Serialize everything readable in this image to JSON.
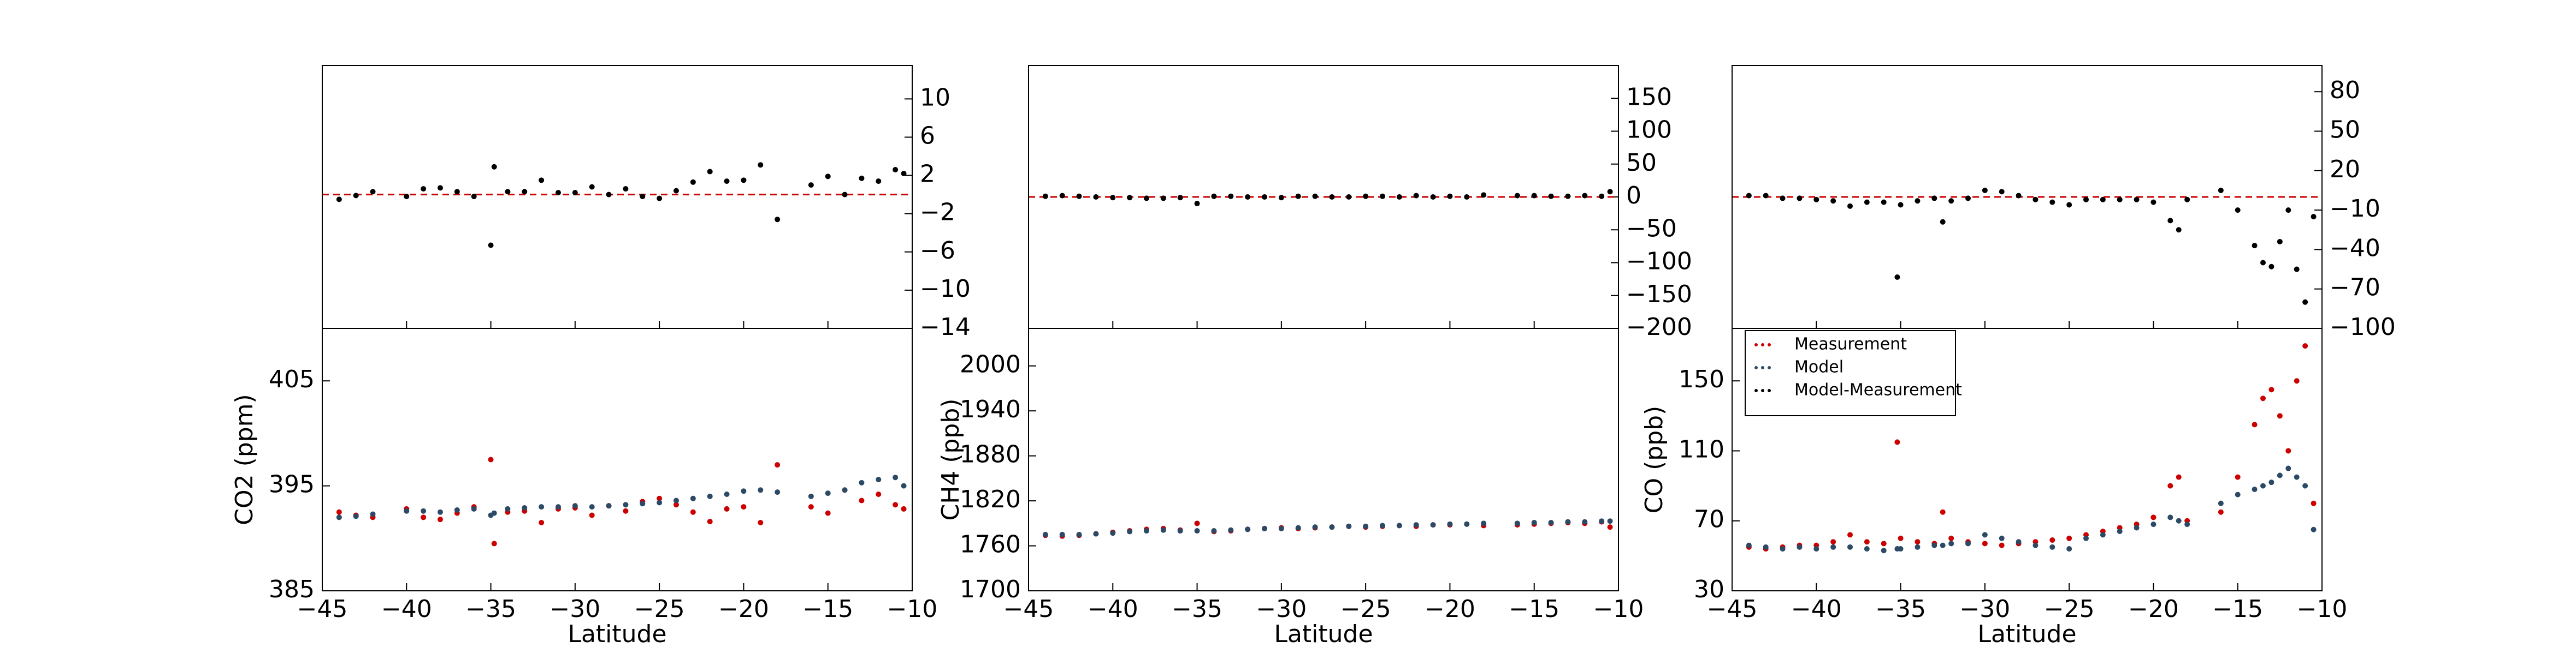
{
  "chart_data": [
    {
      "type": "scatter",
      "xlabel": "Latitude",
      "ylabel": "CO2 (ppm)",
      "x": [
        -44,
        -43,
        -42,
        -40,
        -39,
        -38,
        -37,
        -36,
        -35,
        -34.8,
        -34,
        -33,
        -32,
        -31,
        -30,
        -29,
        -28,
        -27,
        -26,
        -25,
        -24,
        -23,
        -22,
        -21,
        -20,
        -19,
        -18,
        -16,
        -15,
        -14,
        -13,
        -12,
        -11,
        -10.5
      ],
      "series": [
        {
          "name": "Measurement",
          "color": "#cc0000",
          "values": [
            392.5,
            392.2,
            392.0,
            392.8,
            392.0,
            391.8,
            392.4,
            393.0,
            397.5,
            389.5,
            392.5,
            392.6,
            391.5,
            392.8,
            392.9,
            392.2,
            393.1,
            392.6,
            393.5,
            393.8,
            393.2,
            392.5,
            391.6,
            392.8,
            393.0,
            391.5,
            397.0,
            393.0,
            392.4,
            394.6,
            393.6,
            394.2,
            393.2,
            392.8
          ]
        },
        {
          "name": "Model",
          "color": "#2c4a66",
          "values": [
            392.0,
            392.1,
            392.3,
            392.6,
            392.6,
            392.5,
            392.7,
            392.8,
            392.2,
            392.4,
            392.8,
            392.9,
            393.0,
            393.0,
            393.1,
            393.0,
            393.1,
            393.2,
            393.3,
            393.4,
            393.6,
            393.8,
            394.0,
            394.2,
            394.5,
            394.6,
            394.4,
            394.0,
            394.3,
            394.6,
            395.3,
            395.6,
            395.8,
            395.0
          ]
        },
        {
          "name": "Model-Measurement",
          "color": "#000000",
          "axis": "y2",
          "values": [
            -0.5,
            -0.1,
            0.3,
            -0.2,
            0.6,
            0.7,
            0.3,
            -0.2,
            -5.3,
            2.9,
            0.3,
            0.3,
            1.5,
            0.2,
            0.2,
            0.8,
            0,
            0.6,
            -0.2,
            -0.4,
            0.4,
            1.3,
            2.4,
            1.4,
            1.5,
            3.1,
            -2.6,
            1.0,
            1.9,
            0,
            1.7,
            1.4,
            2.6,
            2.2
          ]
        }
      ],
      "xlim": [
        -45,
        -10
      ],
      "xticks": [
        {
          "value": -45,
          "label": "−45"
        },
        {
          "value": -40,
          "label": "−40"
        },
        {
          "value": -35,
          "label": "−35"
        },
        {
          "value": -30,
          "label": "−30"
        },
        {
          "value": -25,
          "label": "−25"
        },
        {
          "value": -20,
          "label": "−20"
        },
        {
          "value": -15,
          "label": "−15"
        },
        {
          "value": -10,
          "label": "−10"
        }
      ],
      "ylim": [
        385,
        410
      ],
      "yticks": [
        385,
        395,
        405
      ],
      "y2lim": [
        -14,
        13.5
      ],
      "y2ticks": [
        10,
        6,
        2,
        {
          "value": -2,
          "label": "−2"
        },
        {
          "value": -6,
          "label": "−6"
        },
        {
          "value": -10,
          "label": "−10"
        },
        {
          "value": -14,
          "label": "−14"
        }
      ],
      "y2_reference_line": 0,
      "reference_color": "#cc0000"
    },
    {
      "type": "scatter",
      "xlabel": "Latitude",
      "ylabel": "CH4 (ppb)",
      "x": [
        -44,
        -43,
        -42,
        -41,
        -40,
        -39,
        -38,
        -37,
        -36,
        -35,
        -34,
        -33,
        -32,
        -31,
        -30,
        -29,
        -28,
        -27,
        -26,
        -25,
        -24,
        -23,
        -22,
        -21,
        -20,
        -19,
        -18,
        -16,
        -15,
        -14,
        -13,
        -12,
        -11,
        -10.5
      ],
      "series": [
        {
          "name": "Measurement",
          "color": "#cc0000",
          "values": [
            1774,
            1773,
            1774,
            1776,
            1778,
            1780,
            1782,
            1783,
            1781,
            1790,
            1779,
            1780,
            1782,
            1783,
            1784,
            1783,
            1784,
            1785,
            1786,
            1785,
            1786,
            1787,
            1786,
            1788,
            1788,
            1789,
            1787,
            1788,
            1789,
            1790,
            1791,
            1790,
            1792,
            1785
          ]
        },
        {
          "name": "Model",
          "color": "#2c4a66",
          "values": [
            1775,
            1775,
            1775,
            1776,
            1777,
            1779,
            1780,
            1781,
            1780,
            1780,
            1780,
            1781,
            1782,
            1783,
            1783,
            1784,
            1785,
            1785,
            1786,
            1786,
            1787,
            1787,
            1788,
            1788,
            1789,
            1789,
            1790,
            1790,
            1791,
            1791,
            1792,
            1792,
            1793,
            1793
          ]
        },
        {
          "name": "Model-Measurement",
          "color": "#000000",
          "axis": "y2",
          "values": [
            1,
            2,
            1,
            0,
            -1,
            -1,
            -2,
            -2,
            -1,
            -10,
            1,
            1,
            0,
            0,
            -1,
            1,
            1,
            0,
            0,
            1,
            1,
            0,
            2,
            0,
            1,
            0,
            3,
            2,
            2,
            1,
            1,
            2,
            1,
            8
          ]
        }
      ],
      "xlim": [
        -45,
        -10
      ],
      "xticks": [
        {
          "value": -45,
          "label": "−45"
        },
        {
          "value": -40,
          "label": "−40"
        },
        {
          "value": -35,
          "label": "−35"
        },
        {
          "value": -30,
          "label": "−30"
        },
        {
          "value": -25,
          "label": "−25"
        },
        {
          "value": -20,
          "label": "−20"
        },
        {
          "value": -15,
          "label": "−15"
        },
        {
          "value": -10,
          "label": "−10"
        }
      ],
      "ylim": [
        1700,
        2050
      ],
      "yticks": [
        1700,
        1760,
        1820,
        1880,
        1940,
        2000
      ],
      "y2lim": [
        -200,
        200
      ],
      "y2ticks": [
        150,
        100,
        50,
        0,
        {
          "value": -50,
          "label": "−50"
        },
        {
          "value": -100,
          "label": "−100"
        },
        {
          "value": -150,
          "label": "−150"
        },
        {
          "value": -200,
          "label": "−200"
        }
      ],
      "y2_reference_line": 0,
      "reference_color": "#cc0000"
    },
    {
      "type": "scatter",
      "xlabel": "Latitude",
      "ylabel": "CO (ppb)",
      "legend": "upper left",
      "x": [
        -44,
        -43,
        -42,
        -41,
        -40,
        -39,
        -38,
        -37,
        -36,
        -35.2,
        -35,
        -34,
        -33,
        -32.5,
        -32,
        -31,
        -30,
        -29,
        -28,
        -27,
        -26,
        -25,
        -24,
        -23,
        -22,
        -21,
        -20,
        -19,
        -18.5,
        -18,
        -16,
        -15,
        -14,
        -13.5,
        -13,
        -12.5,
        -12,
        -11.5,
        -11,
        -10.5
      ],
      "series": [
        {
          "name": "Measurement",
          "color": "#cc0000",
          "values": [
            55,
            54,
            55,
            56,
            56,
            58,
            62,
            58,
            57,
            115,
            60,
            58,
            57,
            75,
            60,
            58,
            57,
            56,
            57,
            58,
            59,
            60,
            62,
            64,
            66,
            68,
            72,
            90,
            95,
            70,
            75,
            95,
            125,
            140,
            145,
            130,
            110,
            150,
            170,
            80
          ]
        },
        {
          "name": "Model",
          "color": "#2c4a66",
          "values": [
            56,
            55,
            54,
            55,
            54,
            55,
            55,
            54,
            53,
            54,
            54,
            55,
            56,
            56,
            57,
            57,
            62,
            60,
            58,
            56,
            55,
            54,
            60,
            62,
            64,
            66,
            68,
            72,
            70,
            68,
            80,
            85,
            88,
            90,
            92,
            96,
            100,
            95,
            90,
            65
          ]
        },
        {
          "name": "Model-Measurement",
          "color": "#000000",
          "axis": "y2",
          "values": [
            1,
            1,
            -1,
            -1,
            -2,
            -3,
            -7,
            -4,
            -4,
            -61,
            -6,
            -3,
            -1,
            -19,
            -3,
            -1,
            5,
            4,
            1,
            -2,
            -4,
            -6,
            -2,
            -2,
            -2,
            -2,
            -4,
            -18,
            -25,
            -2,
            5,
            -10,
            -37,
            -50,
            -53,
            -34,
            -10,
            -55,
            -80,
            -15
          ]
        }
      ],
      "xlim": [
        -45,
        -10
      ],
      "xticks": [
        {
          "value": -45,
          "label": "−45"
        },
        {
          "value": -40,
          "label": "−40"
        },
        {
          "value": -35,
          "label": "−35"
        },
        {
          "value": -30,
          "label": "−30"
        },
        {
          "value": -25,
          "label": "−25"
        },
        {
          "value": -20,
          "label": "−20"
        },
        {
          "value": -15,
          "label": "−15"
        },
        {
          "value": -10,
          "label": "−10"
        }
      ],
      "ylim": [
        30,
        180
      ],
      "yticks": [
        30,
        70,
        110,
        150
      ],
      "y2lim": [
        -100,
        100
      ],
      "y2ticks": [
        80,
        50,
        20,
        {
          "value": -10,
          "label": "−10"
        },
        {
          "value": -40,
          "label": "−40"
        },
        {
          "value": -70,
          "label": "−70"
        },
        {
          "value": -100,
          "label": "−100"
        }
      ],
      "y2_reference_line": 0,
      "reference_color": "#cc0000"
    }
  ]
}
